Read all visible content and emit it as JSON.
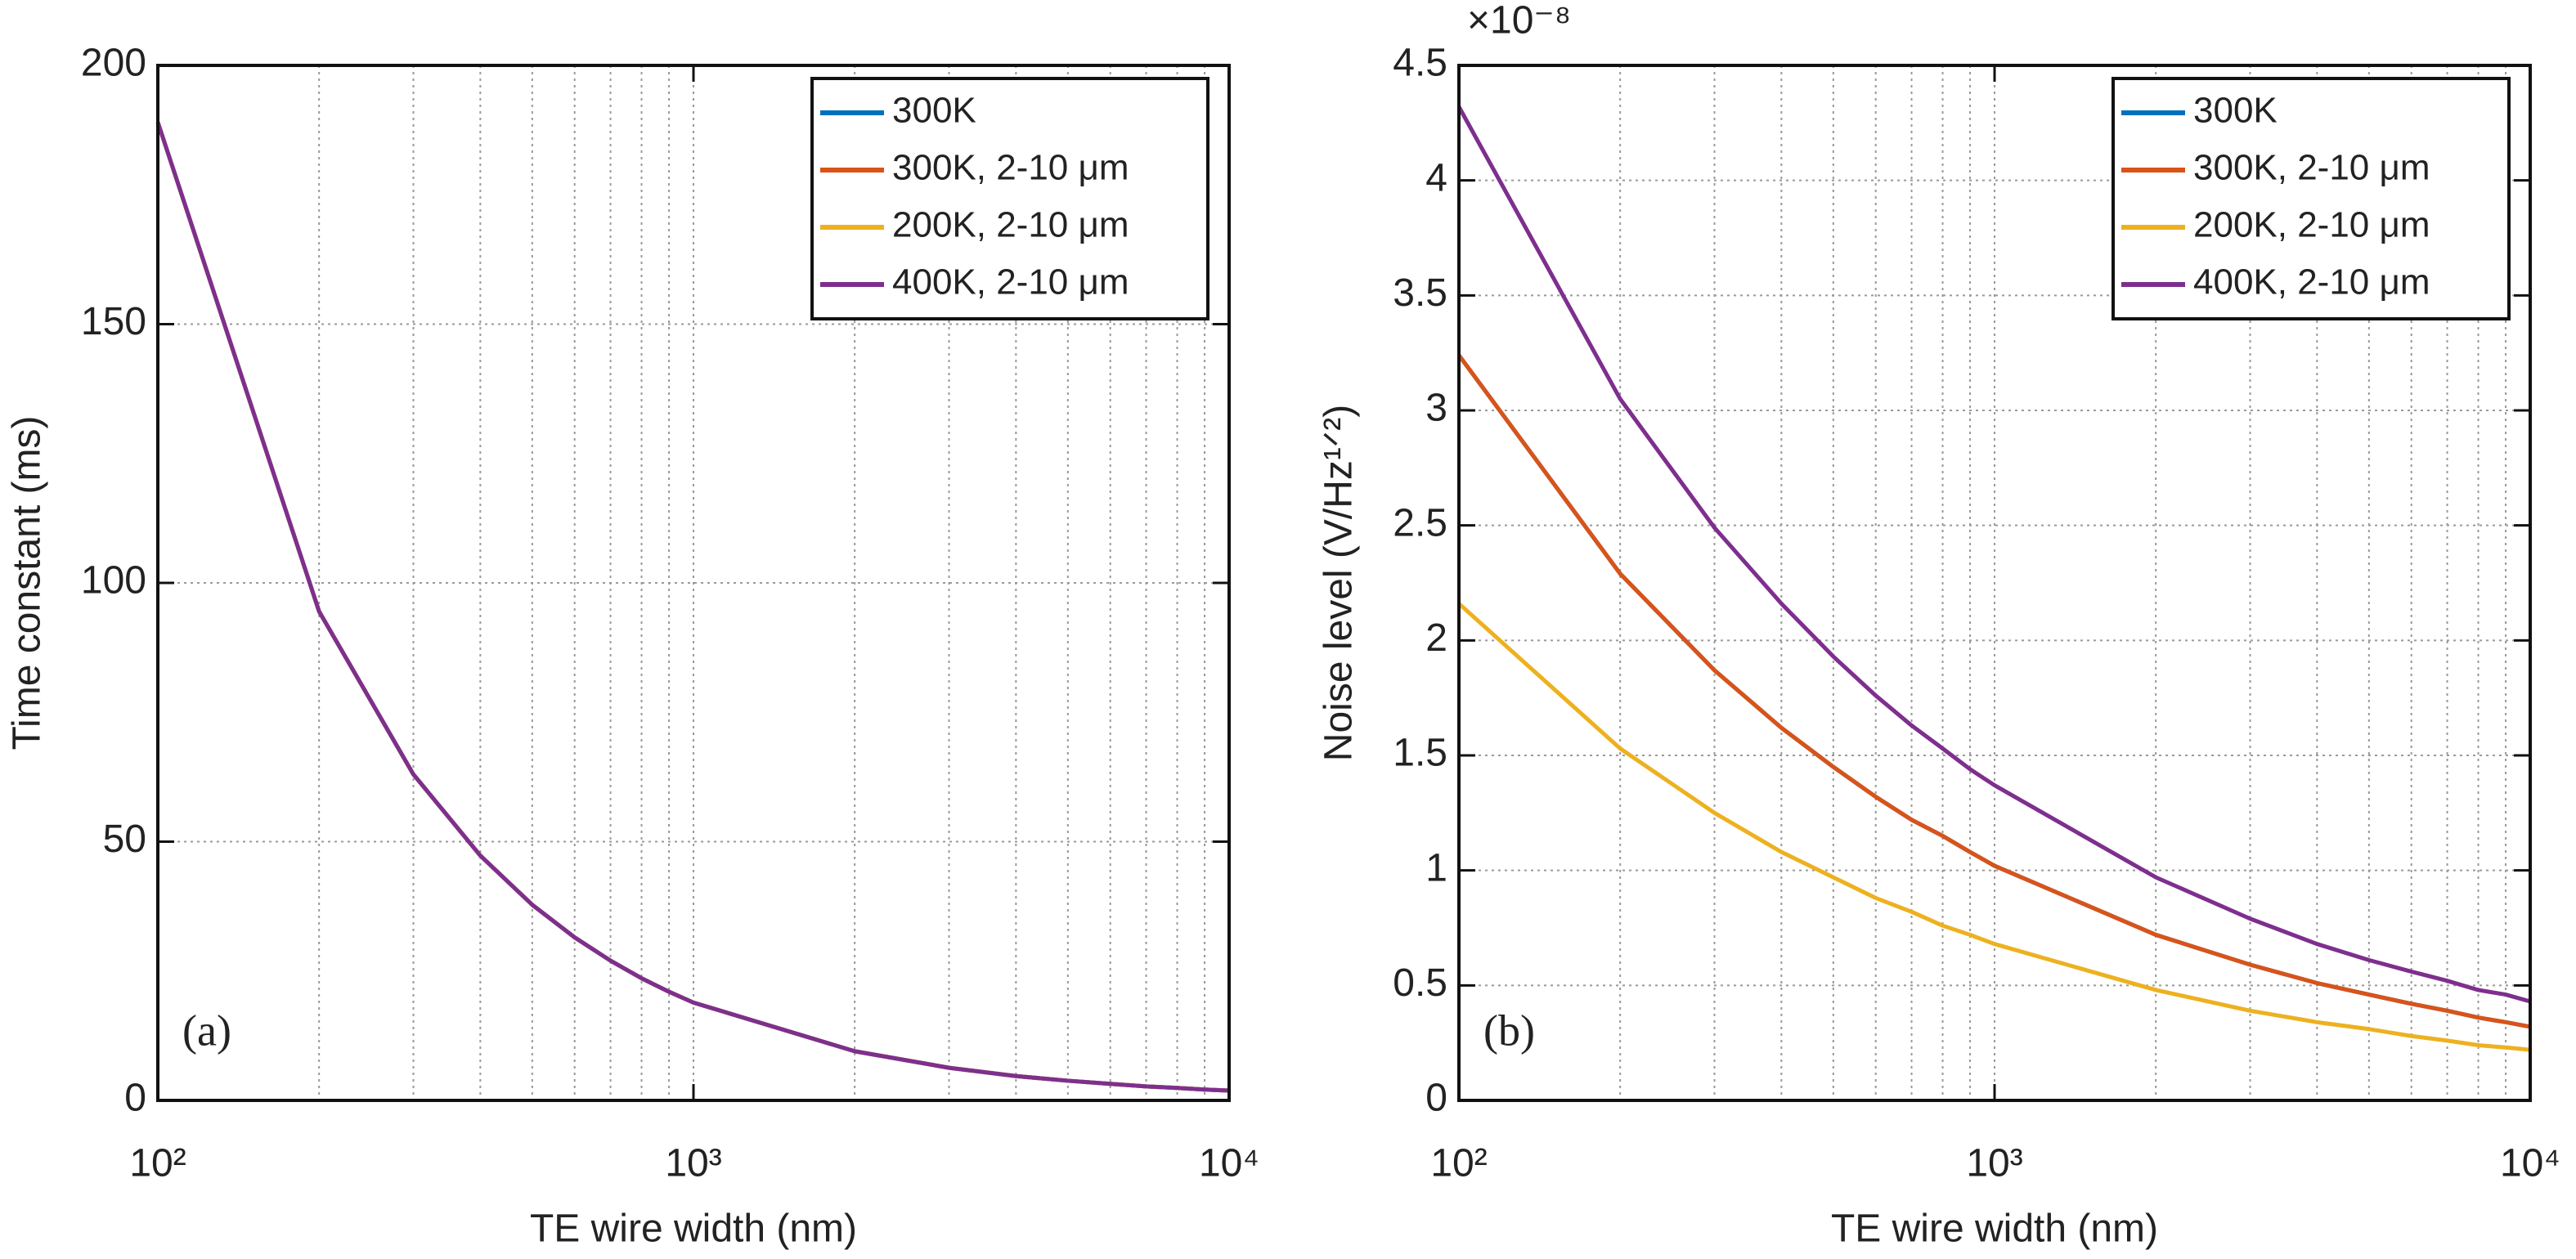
{
  "chart_data": [
    {
      "type": "line",
      "annotation": "(a)",
      "x_label": "TE wire width (nm)",
      "y_label": "Time constant (ms)",
      "xscale": "log",
      "xlim": [
        100,
        10000
      ],
      "xticks": [
        {
          "value": 100,
          "label": "10²"
        },
        {
          "value": 1000,
          "label": "10³"
        },
        {
          "value": 10000,
          "label": "10⁴"
        }
      ],
      "ylim": [
        0,
        200
      ],
      "yticks": [
        0,
        50,
        100,
        150,
        200
      ],
      "grid": true,
      "minor_grid": true,
      "legend": "upper right",
      "x": [
        100,
        200,
        300,
        400,
        500,
        600,
        700,
        800,
        900,
        1000,
        2000,
        3000,
        4000,
        5000,
        6000,
        7000,
        8000,
        9000,
        10000
      ],
      "series": [
        {
          "name": "300K",
          "color": "#0072bd",
          "values": [
            189,
            94.5,
            63,
            47.3,
            37.8,
            31.5,
            27,
            23.6,
            21,
            18.9,
            9.5,
            6.3,
            4.7,
            3.8,
            3.2,
            2.7,
            2.4,
            2.1,
            1.9
          ]
        },
        {
          "name": "300K, 2-10 μm",
          "color": "#d95319",
          "values": [
            189,
            94.5,
            63,
            47.3,
            37.8,
            31.5,
            27,
            23.6,
            21,
            18.9,
            9.5,
            6.3,
            4.7,
            3.8,
            3.2,
            2.7,
            2.4,
            2.1,
            1.9
          ]
        },
        {
          "name": "200K, 2-10 μm",
          "color": "#edb120",
          "values": [
            189,
            94.5,
            63,
            47.3,
            37.8,
            31.5,
            27,
            23.6,
            21,
            18.9,
            9.5,
            6.3,
            4.7,
            3.8,
            3.2,
            2.7,
            2.4,
            2.1,
            1.9
          ]
        },
        {
          "name": "400K, 2-10 μm",
          "color": "#7e2f8e",
          "values": [
            189,
            94.5,
            63,
            47.3,
            37.8,
            31.5,
            27,
            23.6,
            21,
            18.9,
            9.5,
            6.3,
            4.7,
            3.8,
            3.2,
            2.7,
            2.4,
            2.1,
            1.9
          ]
        }
      ]
    },
    {
      "type": "line",
      "annotation": "(b)",
      "x_label": "TE wire width (nm)",
      "y_label": "Noise level (V/Hz¹ᐟ²)",
      "y_multiplier": "×10⁻⁸",
      "xscale": "log",
      "xlim": [
        100,
        10000
      ],
      "xticks": [
        {
          "value": 100,
          "label": "10²"
        },
        {
          "value": 1000,
          "label": "10³"
        },
        {
          "value": 10000,
          "label": "10⁴"
        }
      ],
      "ylim": [
        0,
        4.5
      ],
      "yticks": [
        0,
        0.5,
        1,
        1.5,
        2,
        2.5,
        3,
        3.5,
        4,
        4.5
      ],
      "grid": true,
      "minor_grid": true,
      "legend": "upper right",
      "x": [
        100,
        200,
        300,
        400,
        500,
        600,
        700,
        800,
        900,
        1000,
        2000,
        3000,
        4000,
        5000,
        6000,
        7000,
        8000,
        9000,
        10000
      ],
      "series": [
        {
          "name": "300K",
          "color": "#0072bd",
          "values": [
            3.24,
            2.29,
            1.87,
            1.62,
            1.45,
            1.32,
            1.22,
            1.15,
            1.08,
            1.02,
            0.72,
            0.59,
            0.51,
            0.46,
            0.42,
            0.39,
            0.36,
            0.34,
            0.32
          ]
        },
        {
          "name": "300K, 2-10 μm",
          "color": "#d95319",
          "values": [
            3.24,
            2.29,
            1.87,
            1.62,
            1.45,
            1.32,
            1.22,
            1.15,
            1.08,
            1.02,
            0.72,
            0.59,
            0.51,
            0.46,
            0.42,
            0.39,
            0.36,
            0.34,
            0.32
          ]
        },
        {
          "name": "200K, 2-10 μm",
          "color": "#edb120",
          "values": [
            2.16,
            1.53,
            1.25,
            1.08,
            0.97,
            0.88,
            0.82,
            0.76,
            0.72,
            0.68,
            0.48,
            0.39,
            0.34,
            0.31,
            0.28,
            0.26,
            0.24,
            0.23,
            0.22
          ]
        },
        {
          "name": "400K, 2-10 μm",
          "color": "#7e2f8e",
          "values": [
            4.32,
            3.05,
            2.49,
            2.16,
            1.93,
            1.76,
            1.63,
            1.53,
            1.44,
            1.37,
            0.97,
            0.79,
            0.68,
            0.61,
            0.56,
            0.52,
            0.48,
            0.46,
            0.43
          ]
        }
      ]
    }
  ]
}
